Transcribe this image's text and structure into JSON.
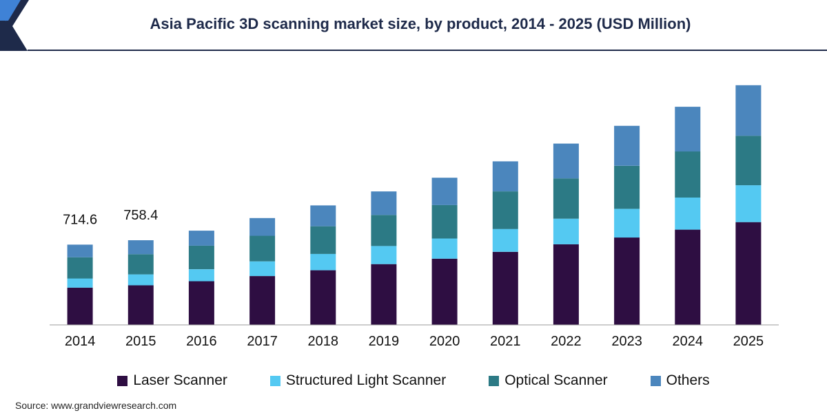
{
  "title": "Asia Pacific 3D scanning market size, by product, 2014 - 2025 (USD Million)",
  "source": "Source: www.grandviewresearch.com",
  "colors": {
    "laser": "#2e0e42",
    "structured": "#54c9f2",
    "optical": "#2c7a85",
    "others": "#4b86bd",
    "banner_dark": "#1e2a4a",
    "banner_accent": "#3f82d6"
  },
  "chart_data": {
    "type": "bar",
    "stacked": true,
    "categories": [
      "2014",
      "2015",
      "2016",
      "2017",
      "2018",
      "2019",
      "2020",
      "2021",
      "2022",
      "2023",
      "2024",
      "2025"
    ],
    "series": [
      {
        "name": "Laser Scanner",
        "color": "#2e0e42",
        "values": [
          109,
          116,
          128,
          143,
          160,
          178,
          194,
          214,
          236,
          256,
          279,
          301
        ]
      },
      {
        "name": "Structured Light Scanner",
        "color": "#54c9f2",
        "values": [
          27,
          32,
          35,
          43,
          48,
          53,
          59,
          67,
          75,
          84,
          94,
          108
        ]
      },
      {
        "name": "Optical Scanner",
        "color": "#2c7a85",
        "values": [
          62,
          59,
          69,
          75,
          81,
          91,
          98,
          110,
          118,
          126,
          135,
          145
        ]
      },
      {
        "name": "Others",
        "color": "#4b86bd",
        "values": [
          37,
          41,
          44,
          52,
          61,
          69,
          80,
          88,
          102,
          117,
          131,
          148
        ]
      }
    ],
    "data_labels": [
      {
        "category": "2014",
        "text": "714.6"
      },
      {
        "category": "2015",
        "text": "758.4"
      }
    ],
    "ylim": [
      0,
      750
    ],
    "grid": false,
    "legend_position": "bottom"
  }
}
